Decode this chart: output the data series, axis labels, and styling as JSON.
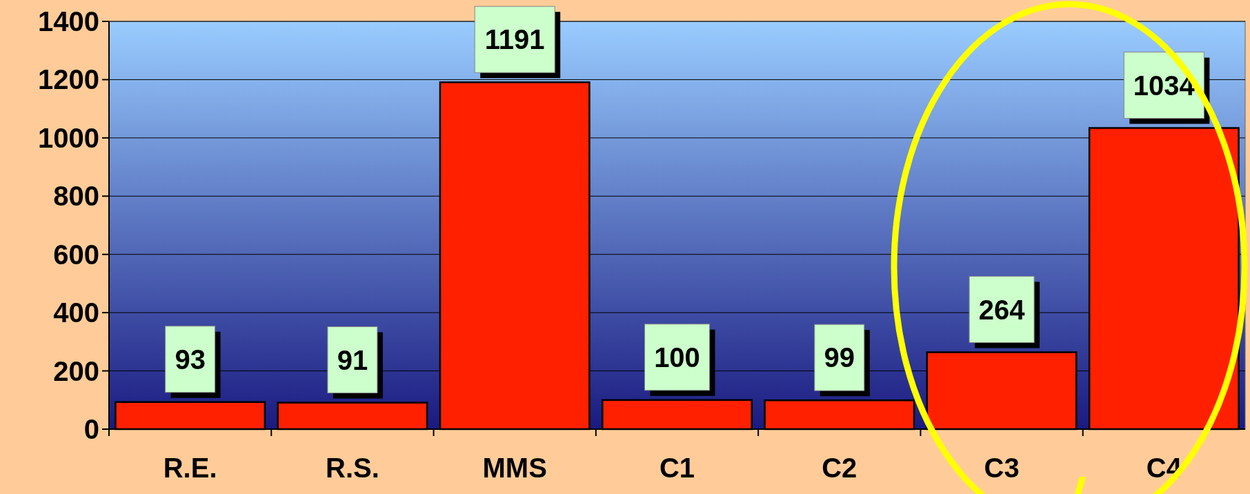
{
  "chart_data": {
    "type": "bar",
    "categories": [
      "R.E.",
      "R.S.",
      "MMS",
      "C1",
      "C2",
      "C3",
      "C4"
    ],
    "values": [
      93,
      91,
      1191,
      100,
      99,
      264,
      1034
    ],
    "color": "#ff2000",
    "ylim": [
      0,
      1400
    ],
    "yticks": [
      0,
      200,
      400,
      600,
      800,
      1000,
      1200,
      1400
    ],
    "grid": "y",
    "data_labels": true
  }
}
